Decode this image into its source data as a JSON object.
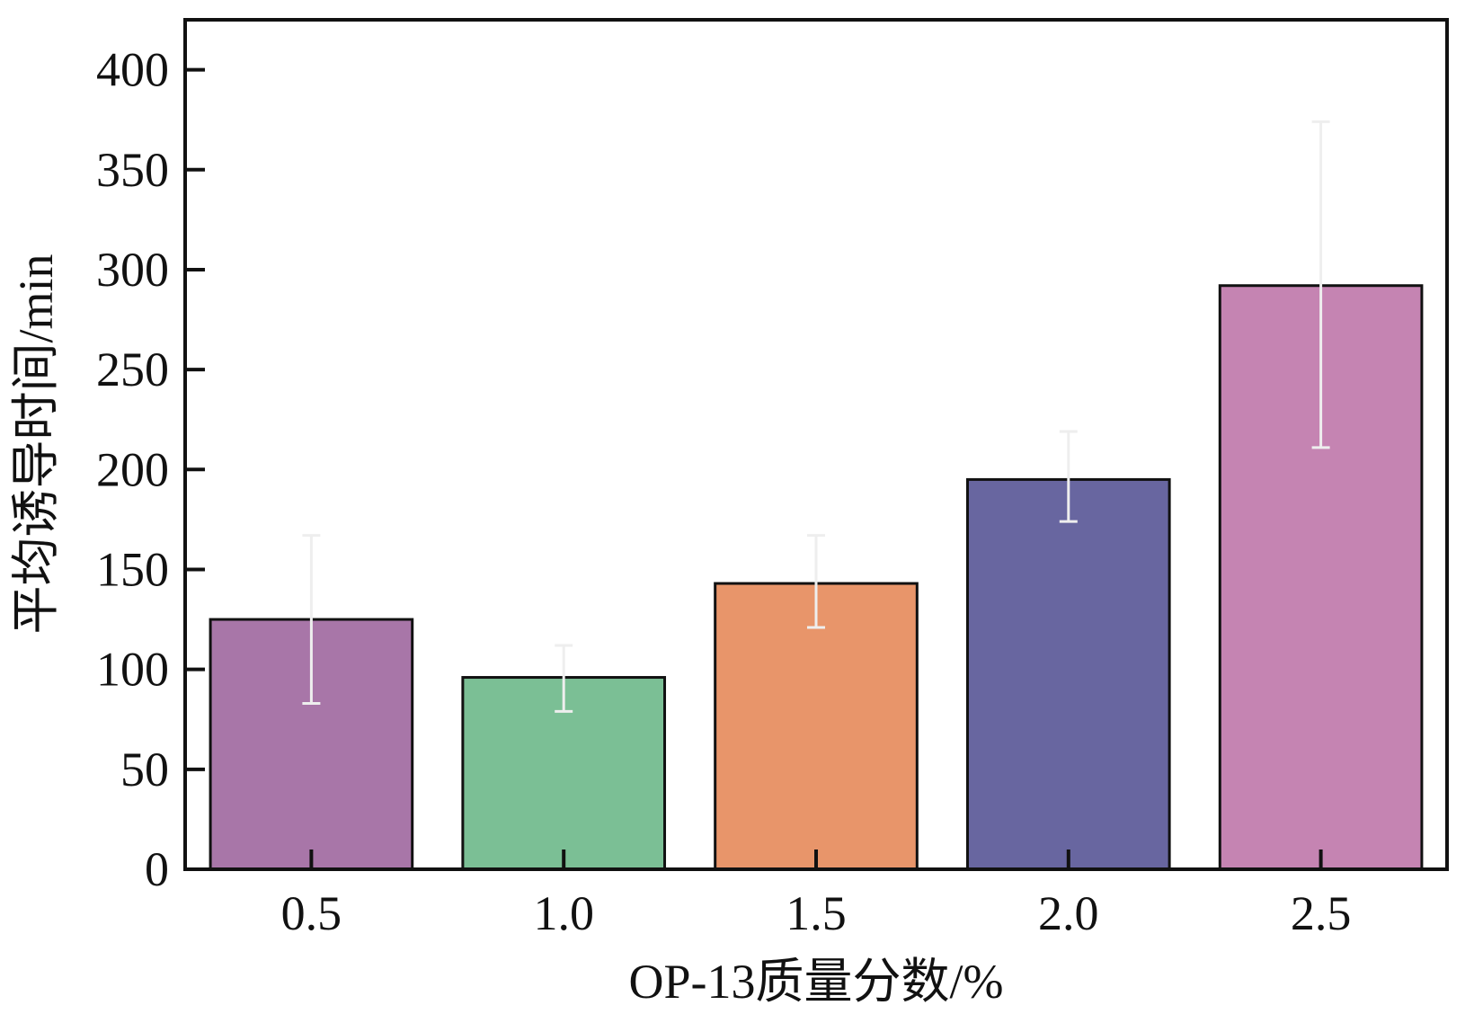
{
  "chart_data": {
    "type": "bar",
    "xlabel": "OP-13质量分数/%",
    "ylabel": "平均诱导时间/min",
    "categories": [
      "0.5",
      "1.0",
      "1.5",
      "2.0",
      "2.5"
    ],
    "values": [
      125,
      96,
      143,
      195,
      292
    ],
    "error_low": [
      83,
      79,
      121,
      174,
      211
    ],
    "error_high": [
      167,
      112,
      167,
      219,
      374
    ],
    "colors": [
      "#A876A8",
      "#7BBF95",
      "#E8956A",
      "#6866A0",
      "#C584B2"
    ],
    "ylim": [
      0,
      425
    ],
    "yticks": [
      0,
      50,
      100,
      150,
      200,
      250,
      300,
      350,
      400
    ],
    "grid": false,
    "legend": "none",
    "errorbar_color": "#eeeeee"
  }
}
